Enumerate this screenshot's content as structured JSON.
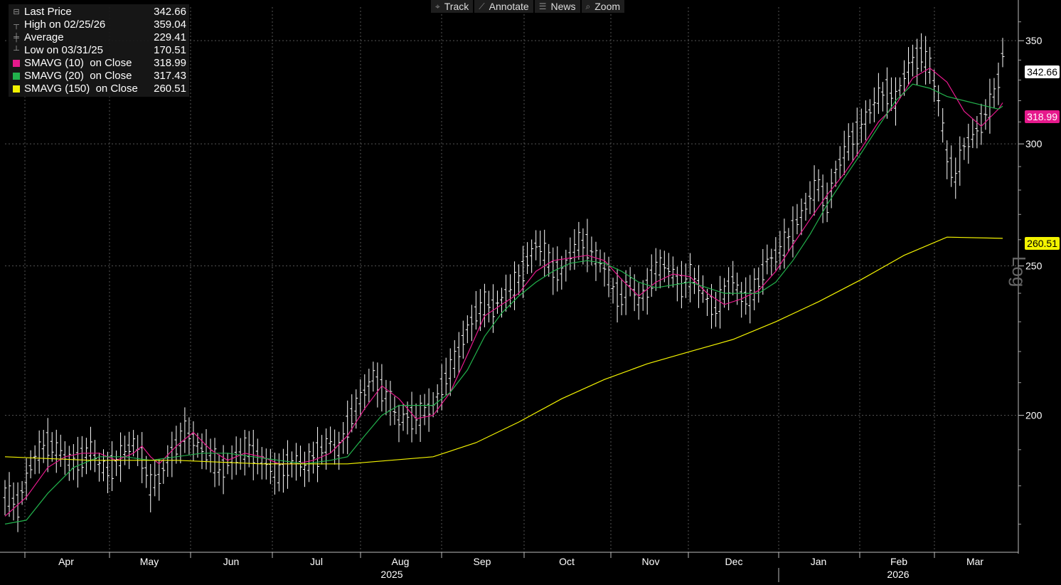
{
  "toolbar": {
    "items": [
      {
        "label": "Track",
        "icon": "crosshair-icon"
      },
      {
        "label": "Annotate",
        "icon": "pencil-icon"
      },
      {
        "label": "News",
        "icon": "news-icon"
      },
      {
        "label": "Zoom",
        "icon": "magnifier-icon"
      }
    ]
  },
  "legend": {
    "rows": [
      {
        "label": "Last Price",
        "value": "342.66",
        "marker": "square",
        "color": "#ffffff"
      },
      {
        "label": "High on 02/25/26",
        "value": "359.04",
        "marker": "high",
        "color": "#999999"
      },
      {
        "label": "Average",
        "value": "229.41",
        "marker": "avg",
        "color": "#999999"
      },
      {
        "label": "Low on 03/31/25",
        "value": "170.51",
        "marker": "low",
        "color": "#999999"
      },
      {
        "label": "SMAVG (10)  on Close",
        "value": "318.99",
        "marker": "square",
        "color": "#e6198c"
      },
      {
        "label": "SMAVG (20)  on Close",
        "value": "317.43",
        "marker": "square",
        "color": "#22b14c"
      },
      {
        "label": "SMAVG (150)  on Close",
        "value": "260.51",
        "marker": "square",
        "color": "#f3f300"
      }
    ]
  },
  "tags": [
    {
      "value": "342.66",
      "bg": "#ffffff",
      "fg": "#000000"
    },
    {
      "value": "318.99",
      "bg": "#e6198c",
      "fg": "#ffffff"
    },
    {
      "value": "260.51",
      "bg": "#f3f300",
      "fg": "#000000"
    }
  ],
  "scale_label": "Log",
  "chart_data": {
    "type": "line",
    "scale": "log",
    "grid": true,
    "ylim": [
      163,
      368
    ],
    "yticks": [
      200,
      250,
      300,
      350
    ],
    "x_months": [
      "Apr",
      "May",
      "Jun",
      "Jul",
      "Aug",
      "Sep",
      "Oct",
      "Nov",
      "Dec",
      "Jan",
      "Feb",
      "Mar"
    ],
    "x_years": [
      "2025",
      "2026"
    ],
    "series": [
      {
        "name": "Last Price",
        "color": "#ffffff",
        "style": "bar",
        "points": [
          [
            0,
            178
          ],
          [
            3,
            175
          ],
          [
            5,
            182
          ],
          [
            7,
            188
          ],
          [
            10,
            192
          ],
          [
            13,
            189
          ],
          [
            16,
            186
          ],
          [
            18,
            188
          ],
          [
            20,
            190
          ],
          [
            22,
            186
          ],
          [
            24,
            184
          ],
          [
            26,
            187
          ],
          [
            28,
            189
          ],
          [
            30,
            192
          ],
          [
            32,
            188
          ],
          [
            34,
            180
          ],
          [
            36,
            182
          ],
          [
            38,
            187
          ],
          [
            40,
            191
          ],
          [
            42,
            195
          ],
          [
            44,
            193
          ],
          [
            46,
            190
          ],
          [
            48,
            189
          ],
          [
            50,
            184
          ],
          [
            52,
            186
          ],
          [
            54,
            188
          ],
          [
            56,
            190
          ],
          [
            58,
            189
          ],
          [
            60,
            187
          ],
          [
            62,
            185
          ],
          [
            64,
            183
          ],
          [
            66,
            186
          ],
          [
            68,
            187
          ],
          [
            70,
            185
          ],
          [
            72,
            188
          ],
          [
            74,
            190
          ],
          [
            76,
            192
          ],
          [
            78,
            190
          ],
          [
            80,
            197
          ],
          [
            82,
            203
          ],
          [
            84,
            207
          ],
          [
            86,
            212
          ],
          [
            88,
            208
          ],
          [
            90,
            204
          ],
          [
            92,
            198
          ],
          [
            94,
            200
          ],
          [
            96,
            199
          ],
          [
            98,
            201
          ],
          [
            100,
            203
          ],
          [
            102,
            209
          ],
          [
            104,
            214
          ],
          [
            106,
            220
          ],
          [
            108,
            228
          ],
          [
            110,
            233
          ],
          [
            112,
            236
          ],
          [
            114,
            235
          ],
          [
            116,
            238
          ],
          [
            118,
            241
          ],
          [
            120,
            245
          ],
          [
            122,
            252
          ],
          [
            124,
            258
          ],
          [
            126,
            255
          ],
          [
            128,
            249
          ],
          [
            130,
            248
          ],
          [
            132,
            254
          ],
          [
            134,
            259
          ],
          [
            136,
            258
          ],
          [
            138,
            253
          ],
          [
            140,
            249
          ],
          [
            142,
            242
          ],
          [
            144,
            238
          ],
          [
            146,
            244
          ],
          [
            148,
            237
          ],
          [
            150,
            242
          ],
          [
            152,
            249
          ],
          [
            154,
            250
          ],
          [
            156,
            247
          ],
          [
            158,
            243
          ],
          [
            160,
            246
          ],
          [
            162,
            243
          ],
          [
            164,
            238
          ],
          [
            166,
            234
          ],
          [
            168,
            240
          ],
          [
            170,
            245
          ],
          [
            172,
            239
          ],
          [
            174,
            238
          ],
          [
            176,
            244
          ],
          [
            178,
            252
          ],
          [
            180,
            254
          ],
          [
            182,
            258
          ],
          [
            184,
            264
          ],
          [
            186,
            270
          ],
          [
            188,
            277
          ],
          [
            190,
            282
          ],
          [
            192,
            274
          ],
          [
            194,
            288
          ],
          [
            196,
            296
          ],
          [
            198,
            303
          ],
          [
            200,
            308
          ],
          [
            202,
            315
          ],
          [
            204,
            322
          ],
          [
            206,
            325
          ],
          [
            208,
            320
          ],
          [
            210,
            332
          ],
          [
            212,
            340
          ],
          [
            214,
            343
          ],
          [
            216,
            337
          ],
          [
            218,
            320
          ],
          [
            220,
            295
          ],
          [
            222,
            285
          ],
          [
            224,
            299
          ],
          [
            226,
            303
          ],
          [
            228,
            310
          ],
          [
            230,
            317
          ],
          [
            232,
            330
          ],
          [
            233,
            342.66
          ]
        ]
      },
      {
        "name": "SMAVG (10)",
        "color": "#e6198c",
        "style": "line",
        "points": [
          [
            0,
            172
          ],
          [
            5,
            177
          ],
          [
            10,
            185
          ],
          [
            14,
            188
          ],
          [
            18,
            189
          ],
          [
            22,
            189
          ],
          [
            26,
            187
          ],
          [
            30,
            189
          ],
          [
            32,
            191
          ],
          [
            34,
            188
          ],
          [
            36,
            186
          ],
          [
            40,
            191
          ],
          [
            44,
            195
          ],
          [
            48,
            190
          ],
          [
            52,
            187
          ],
          [
            56,
            189
          ],
          [
            60,
            188
          ],
          [
            64,
            186
          ],
          [
            68,
            186
          ],
          [
            72,
            187
          ],
          [
            76,
            189
          ],
          [
            80,
            194
          ],
          [
            84,
            202
          ],
          [
            88,
            209
          ],
          [
            92,
            205
          ],
          [
            96,
            199
          ],
          [
            100,
            200
          ],
          [
            104,
            207
          ],
          [
            108,
            219
          ],
          [
            112,
            232
          ],
          [
            116,
            236
          ],
          [
            120,
            240
          ],
          [
            124,
            248
          ],
          [
            128,
            252
          ],
          [
            132,
            253
          ],
          [
            136,
            254
          ],
          [
            140,
            252
          ],
          [
            144,
            245
          ],
          [
            148,
            239
          ],
          [
            152,
            244
          ],
          [
            156,
            247
          ],
          [
            160,
            246
          ],
          [
            164,
            240
          ],
          [
            168,
            236
          ],
          [
            172,
            238
          ],
          [
            176,
            241
          ],
          [
            180,
            248
          ],
          [
            184,
            258
          ],
          [
            188,
            268
          ],
          [
            192,
            278
          ],
          [
            196,
            287
          ],
          [
            200,
            298
          ],
          [
            204,
            310
          ],
          [
            208,
            318
          ],
          [
            212,
            331
          ],
          [
            216,
            336
          ],
          [
            220,
            329
          ],
          [
            224,
            315
          ],
          [
            228,
            308
          ],
          [
            232,
            316
          ],
          [
            233,
            318.99
          ]
        ]
      },
      {
        "name": "SMAVG (20)",
        "color": "#22b14c",
        "style": "line",
        "points": [
          [
            0,
            170
          ],
          [
            5,
            171
          ],
          [
            10,
            178
          ],
          [
            16,
            185
          ],
          [
            22,
            188
          ],
          [
            28,
            188
          ],
          [
            34,
            187
          ],
          [
            40,
            188
          ],
          [
            46,
            189
          ],
          [
            52,
            189
          ],
          [
            58,
            188
          ],
          [
            64,
            187
          ],
          [
            70,
            186
          ],
          [
            76,
            187
          ],
          [
            80,
            188
          ],
          [
            84,
            194
          ],
          [
            88,
            200
          ],
          [
            92,
            203
          ],
          [
            96,
            203
          ],
          [
            100,
            203
          ],
          [
            104,
            207
          ],
          [
            108,
            214
          ],
          [
            112,
            225
          ],
          [
            116,
            233
          ],
          [
            120,
            239
          ],
          [
            124,
            244
          ],
          [
            128,
            248
          ],
          [
            132,
            251
          ],
          [
            136,
            252
          ],
          [
            140,
            251
          ],
          [
            144,
            248
          ],
          [
            148,
            244
          ],
          [
            152,
            242
          ],
          [
            156,
            243
          ],
          [
            160,
            244
          ],
          [
            164,
            242
          ],
          [
            168,
            240
          ],
          [
            172,
            240
          ],
          [
            176,
            240
          ],
          [
            180,
            244
          ],
          [
            184,
            252
          ],
          [
            188,
            262
          ],
          [
            192,
            274
          ],
          [
            196,
            285
          ],
          [
            200,
            296
          ],
          [
            204,
            308
          ],
          [
            208,
            320
          ],
          [
            212,
            328
          ],
          [
            216,
            326
          ],
          [
            220,
            322
          ],
          [
            224,
            320
          ],
          [
            228,
            318
          ],
          [
            232,
            316
          ],
          [
            233,
            317.43
          ]
        ]
      },
      {
        "name": "SMAVG (150)",
        "color": "#f3f300",
        "style": "line",
        "points": [
          [
            0,
            188
          ],
          [
            20,
            187
          ],
          [
            40,
            187
          ],
          [
            60,
            186
          ],
          [
            80,
            186
          ],
          [
            90,
            187
          ],
          [
            100,
            188
          ],
          [
            110,
            192
          ],
          [
            120,
            198
          ],
          [
            130,
            205
          ],
          [
            140,
            211
          ],
          [
            150,
            216
          ],
          [
            160,
            220
          ],
          [
            170,
            224
          ],
          [
            180,
            230
          ],
          [
            190,
            237
          ],
          [
            200,
            245
          ],
          [
            210,
            254
          ],
          [
            220,
            261
          ],
          [
            233,
            260.51
          ]
        ]
      }
    ]
  }
}
